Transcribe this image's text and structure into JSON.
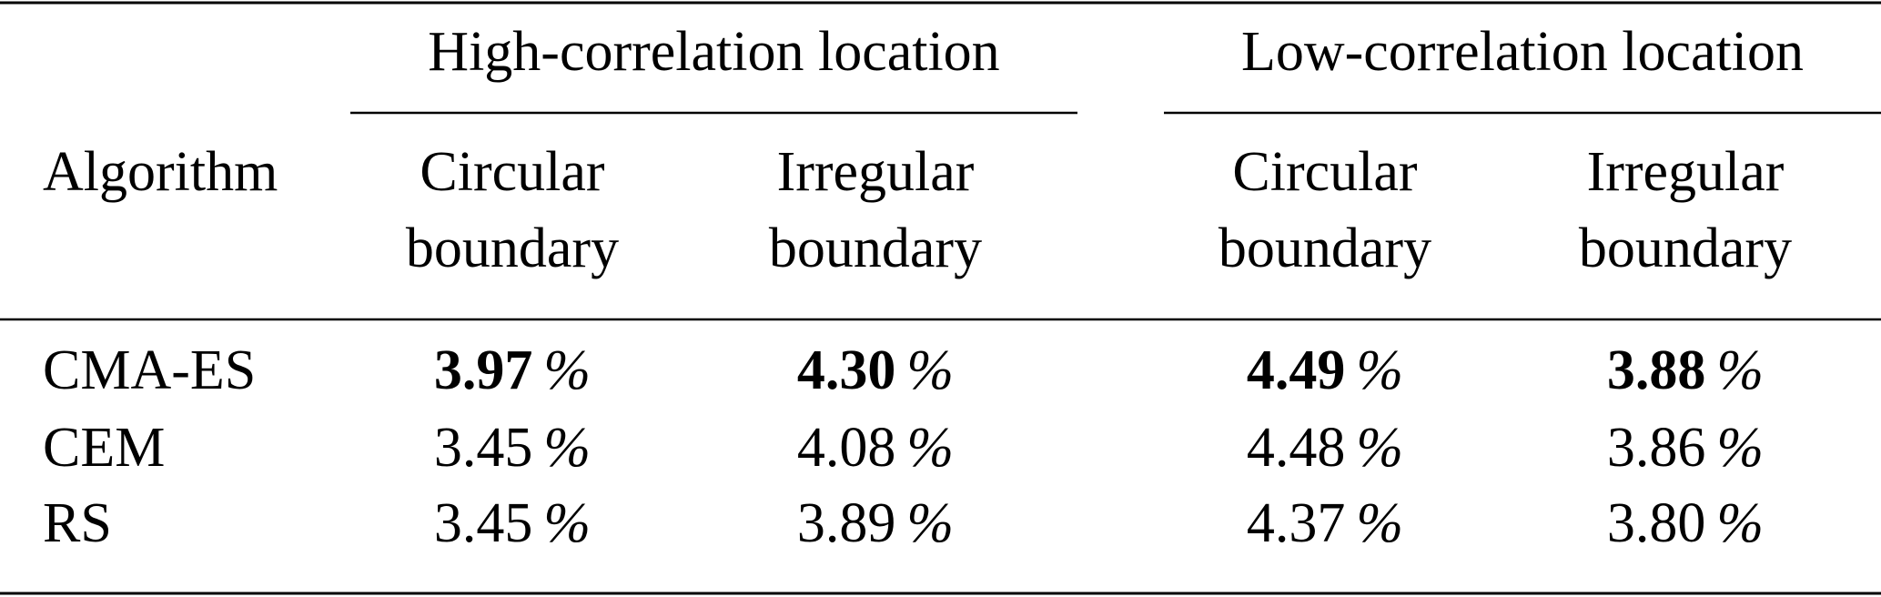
{
  "table": {
    "header": {
      "algorithm": "Algorithm",
      "groups": [
        {
          "label": "High-correlation location",
          "columns": [
            [
              "Circular",
              "boundary"
            ],
            [
              "Irregular",
              "boundary"
            ]
          ]
        },
        {
          "label": "Low-correlation location",
          "columns": [
            [
              "Circular",
              "boundary"
            ],
            [
              "Irregular",
              "boundary"
            ]
          ]
        }
      ]
    },
    "rows": [
      {
        "label": "CMA-ES",
        "cells": [
          {
            "value": "3.97",
            "unit": "%",
            "bold": true
          },
          {
            "value": "4.30",
            "unit": "%",
            "bold": true
          },
          {
            "value": "4.49",
            "unit": "%",
            "bold": true
          },
          {
            "value": "3.88",
            "unit": "%",
            "bold": true
          }
        ]
      },
      {
        "label": "CEM",
        "cells": [
          {
            "value": "3.45",
            "unit": "%",
            "bold": false
          },
          {
            "value": "4.08",
            "unit": "%",
            "bold": false
          },
          {
            "value": "4.48",
            "unit": "%",
            "bold": false
          },
          {
            "value": "3.86",
            "unit": "%",
            "bold": false
          }
        ]
      },
      {
        "label": "RS",
        "cells": [
          {
            "value": "3.45",
            "unit": "%",
            "bold": false
          },
          {
            "value": "3.89",
            "unit": "%",
            "bold": false
          },
          {
            "value": "4.37",
            "unit": "%",
            "bold": false
          },
          {
            "value": "3.80",
            "unit": "%",
            "bold": false
          }
        ]
      }
    ]
  }
}
